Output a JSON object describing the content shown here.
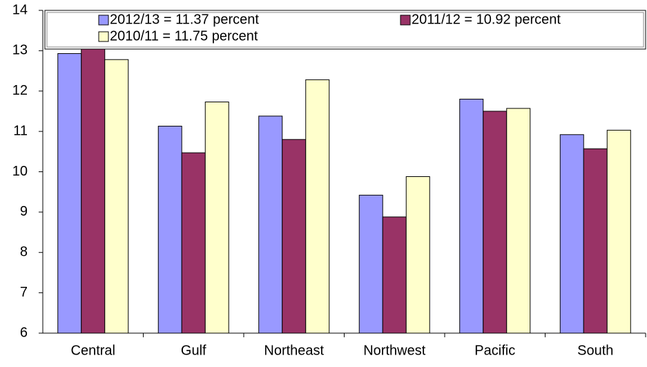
{
  "chart_data": {
    "type": "bar",
    "categories": [
      "Central",
      "Gulf",
      "Northeast",
      "Northwest",
      "Pacific",
      "South"
    ],
    "series": [
      {
        "name": "2012/13 = 11.37 percent",
        "color": "#9999ff",
        "values": [
          12.93,
          11.13,
          11.38,
          9.42,
          11.8,
          10.92
        ]
      },
      {
        "name": "2011/12 = 10.92 percent",
        "color": "#993366",
        "values": [
          13.15,
          10.47,
          10.8,
          8.88,
          11.5,
          10.57
        ]
      },
      {
        "name": "2010/11 = 11.75 percent",
        "color": "#ffffcc",
        "values": [
          12.78,
          11.73,
          12.28,
          9.88,
          11.57,
          11.03
        ]
      }
    ],
    "ylim": [
      6,
      14
    ],
    "yticks": [
      6,
      7,
      8,
      9,
      10,
      11,
      12,
      13,
      14
    ],
    "grid": false
  }
}
